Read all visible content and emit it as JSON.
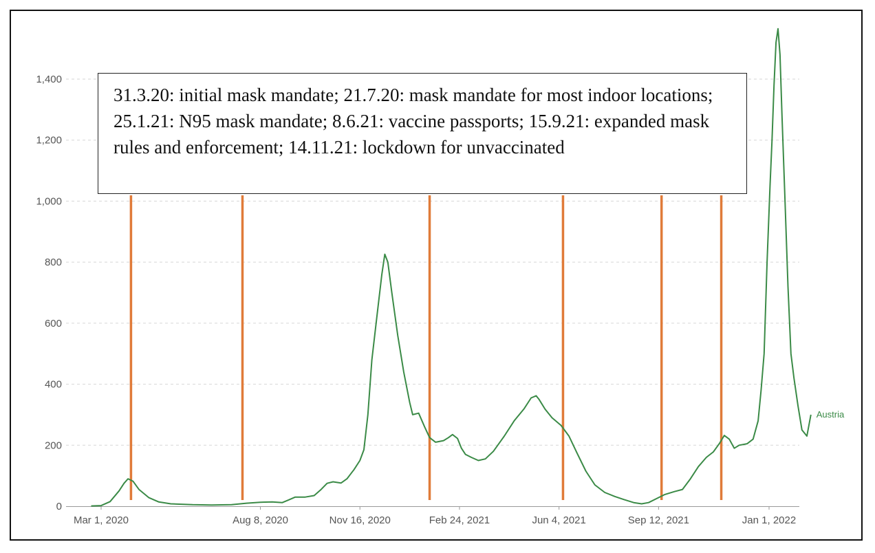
{
  "chart_data": {
    "type": "line",
    "x_axis": {
      "type": "date",
      "range": [
        "2020-02-20",
        "2022-01-13"
      ],
      "ticks": [
        {
          "date": "2020-03-01",
          "label": "Mar 1, 2020"
        },
        {
          "date": "2020-08-08",
          "label": "Aug 8, 2020"
        },
        {
          "date": "2020-11-16",
          "label": "Nov 16, 2020"
        },
        {
          "date": "2021-02-24",
          "label": "Feb 24, 2021"
        },
        {
          "date": "2021-06-04",
          "label": "Jun 4, 2021"
        },
        {
          "date": "2021-09-12",
          "label": "Sep 12, 2021"
        },
        {
          "date": "2022-01-01",
          "label": "Jan 1, 2022"
        }
      ]
    },
    "y_axis": {
      "range": [
        0,
        1600
      ],
      "ticks": [
        {
          "value": 0,
          "label": "0"
        },
        {
          "value": 200,
          "label": "200"
        },
        {
          "value": 400,
          "label": "400"
        },
        {
          "value": 600,
          "label": "600"
        },
        {
          "value": 800,
          "label": "800"
        },
        {
          "value": 1000,
          "label": "1,000"
        },
        {
          "value": 1200,
          "label": "1,200"
        },
        {
          "value": 1400,
          "label": "1,400"
        }
      ],
      "grid": "dashed horizontal"
    },
    "series": [
      {
        "name": "Austria",
        "color": "#3a8a46",
        "points": [
          [
            "2020-02-20",
            1
          ],
          [
            "2020-03-01",
            2
          ],
          [
            "2020-03-10",
            15
          ],
          [
            "2020-03-19",
            50
          ],
          [
            "2020-03-24",
            75
          ],
          [
            "2020-03-28",
            90
          ],
          [
            "2020-04-02",
            82
          ],
          [
            "2020-04-08",
            55
          ],
          [
            "2020-04-18",
            28
          ],
          [
            "2020-04-28",
            14
          ],
          [
            "2020-05-10",
            8
          ],
          [
            "2020-06-01",
            5
          ],
          [
            "2020-06-20",
            4
          ],
          [
            "2020-07-10",
            5
          ],
          [
            "2020-07-25",
            10
          ],
          [
            "2020-08-08",
            13
          ],
          [
            "2020-08-20",
            14
          ],
          [
            "2020-08-30",
            12
          ],
          [
            "2020-09-05",
            20
          ],
          [
            "2020-09-12",
            30
          ],
          [
            "2020-09-22",
            30
          ],
          [
            "2020-10-01",
            35
          ],
          [
            "2020-10-08",
            55
          ],
          [
            "2020-10-14",
            75
          ],
          [
            "2020-10-20",
            80
          ],
          [
            "2020-10-28",
            76
          ],
          [
            "2020-11-03",
            90
          ],
          [
            "2020-11-10",
            120
          ],
          [
            "2020-11-16",
            150
          ],
          [
            "2020-11-20",
            185
          ],
          [
            "2020-11-24",
            300
          ],
          [
            "2020-11-28",
            480
          ],
          [
            "2020-12-03",
            620
          ],
          [
            "2020-12-08",
            760
          ],
          [
            "2020-12-11",
            826
          ],
          [
            "2020-12-14",
            800
          ],
          [
            "2020-12-18",
            700
          ],
          [
            "2020-12-24",
            560
          ],
          [
            "2020-12-30",
            440
          ],
          [
            "2021-01-05",
            340
          ],
          [
            "2021-01-08",
            300
          ],
          [
            "2021-01-14",
            305
          ],
          [
            "2021-01-20",
            260
          ],
          [
            "2021-01-25",
            225
          ],
          [
            "2021-01-31",
            210
          ],
          [
            "2021-02-08",
            215
          ],
          [
            "2021-02-13",
            225
          ],
          [
            "2021-02-17",
            235
          ],
          [
            "2021-02-22",
            222
          ],
          [
            "2021-02-26",
            190
          ],
          [
            "2021-03-02",
            170
          ],
          [
            "2021-03-08",
            160
          ],
          [
            "2021-03-15",
            150
          ],
          [
            "2021-03-22",
            155
          ],
          [
            "2021-03-30",
            180
          ],
          [
            "2021-04-10",
            230
          ],
          [
            "2021-04-20",
            280
          ],
          [
            "2021-04-30",
            320
          ],
          [
            "2021-05-07",
            355
          ],
          [
            "2021-05-12",
            362
          ],
          [
            "2021-05-15",
            350
          ],
          [
            "2021-05-21",
            318
          ],
          [
            "2021-05-28",
            290
          ],
          [
            "2021-06-06",
            265
          ],
          [
            "2021-06-14",
            230
          ],
          [
            "2021-06-22",
            175
          ],
          [
            "2021-07-01",
            115
          ],
          [
            "2021-07-10",
            70
          ],
          [
            "2021-07-20",
            45
          ],
          [
            "2021-07-30",
            32
          ],
          [
            "2021-08-08",
            22
          ],
          [
            "2021-08-18",
            12
          ],
          [
            "2021-08-26",
            8
          ],
          [
            "2021-09-02",
            12
          ],
          [
            "2021-09-10",
            25
          ],
          [
            "2021-09-18",
            38
          ],
          [
            "2021-09-28",
            48
          ],
          [
            "2021-10-06",
            55
          ],
          [
            "2021-10-14",
            90
          ],
          [
            "2021-10-22",
            130
          ],
          [
            "2021-10-30",
            160
          ],
          [
            "2021-11-06",
            178
          ],
          [
            "2021-11-12",
            205
          ],
          [
            "2021-11-17",
            232
          ],
          [
            "2021-11-22",
            220
          ],
          [
            "2021-11-27",
            190
          ],
          [
            "2021-12-02",
            200
          ],
          [
            "2021-12-10",
            205
          ],
          [
            "2021-12-16",
            220
          ],
          [
            "2021-12-21",
            280
          ],
          [
            "2021-12-24",
            380
          ],
          [
            "2021-12-27",
            500
          ],
          [
            "2021-12-30",
            800
          ],
          [
            "2022-01-02",
            1050
          ],
          [
            "2022-01-04",
            1200
          ],
          [
            "2022-01-06",
            1380
          ],
          [
            "2022-01-08",
            1520
          ],
          [
            "2022-01-10",
            1565
          ],
          [
            "2022-01-12",
            1480
          ],
          [
            "2022-01-14",
            1280
          ],
          [
            "2022-01-17",
            1000
          ],
          [
            "2022-01-20",
            720
          ],
          [
            "2022-01-23",
            500
          ],
          [
            "2022-01-26",
            420
          ],
          [
            "2022-01-30",
            330
          ],
          [
            "2022-02-03",
            250
          ],
          [
            "2022-02-08",
            230
          ],
          [
            "2022-02-12",
            300
          ]
        ]
      }
    ],
    "event_markers": {
      "color": "#e07b39",
      "dates": [
        "2020-03-31",
        "2020-07-21",
        "2021-01-25",
        "2021-06-08",
        "2021-09-15",
        "2021-11-14"
      ]
    },
    "annotation": "31.3.20: initial mask mandate; 21.7.20: mask mandate for most indoor locations; 25.1.21: N95 mask mandate; 8.6.21: vaccine passports; 15.9.21: expanded mask rules and enforcement; 14.11.21: lockdown for unvaccinated",
    "title": "",
    "xlabel": "",
    "ylabel": "",
    "legend": "inline label at line end"
  }
}
